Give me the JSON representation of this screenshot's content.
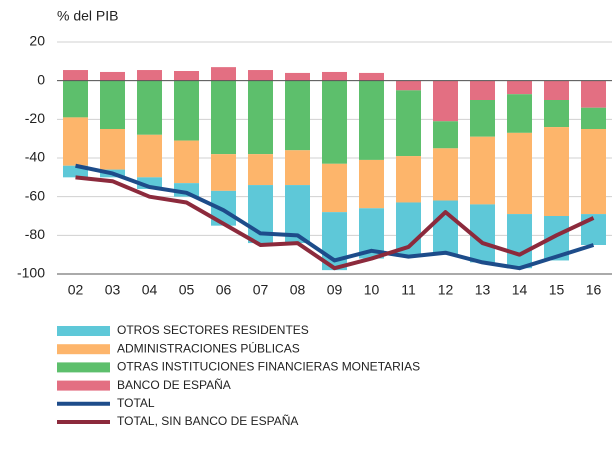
{
  "chart_data": {
    "type": "bar",
    "y_label": "% del PIB",
    "categories": [
      "02",
      "03",
      "04",
      "05",
      "06",
      "07",
      "08",
      "09",
      "10",
      "11",
      "12",
      "13",
      "14",
      "15",
      "16"
    ],
    "ylim": [
      -100,
      20
    ],
    "yticks": [
      -100,
      -80,
      -60,
      -40,
      -20,
      0,
      20
    ],
    "grid": true,
    "series": [
      {
        "name": "OTROS SECTORES RESIDENTES",
        "kind": "bar",
        "color": "#5ec8d8",
        "values": [
          -6,
          -4,
          -6,
          -7,
          -18,
          -30,
          -30,
          -30,
          -26,
          -28,
          -28,
          -30,
          -28,
          -23,
          -16
        ]
      },
      {
        "name": "ADMINISTRACIONES PÚBLICAS",
        "kind": "bar",
        "color": "#fdb56b",
        "values": [
          -25,
          -21,
          -22,
          -22,
          -19,
          -16,
          -18,
          -25,
          -25,
          -24,
          -27,
          -35,
          -42,
          -46,
          -44
        ]
      },
      {
        "name": "OTRAS  INSTITUCIONES FINANCIERAS MONETARIAS",
        "kind": "bar",
        "color": "#5dbf6c",
        "values": [
          -19,
          -25,
          -28,
          -31,
          -38,
          -38,
          -36,
          -43,
          -41,
          -34,
          -14,
          -19,
          -20,
          -14,
          -11
        ]
      },
      {
        "name": "BANCO DE ESPAÑA",
        "kind": "bar",
        "color": "#e36f82",
        "values": [
          5.5,
          4.5,
          5.5,
          5,
          7,
          5.5,
          4,
          4.5,
          4,
          -5,
          -21,
          -10,
          -7,
          -10,
          -14
        ]
      },
      {
        "name": "TOTAL",
        "kind": "line",
        "color": "#1d4c8a",
        "values": [
          -44,
          -48,
          -55,
          -58,
          -67,
          -79,
          -80,
          -93,
          -88,
          -91,
          -89,
          -94,
          -97,
          -91,
          -85
        ]
      },
      {
        "name": "TOTAL, SIN BANCO DE ESPAÑA",
        "kind": "line",
        "color": "#8c2a3c",
        "values": [
          -50,
          -52,
          -60,
          -63,
          -74,
          -85,
          -84,
          -97,
          -92,
          -86,
          -68,
          -84,
          -90,
          -80,
          -71
        ]
      }
    ]
  }
}
